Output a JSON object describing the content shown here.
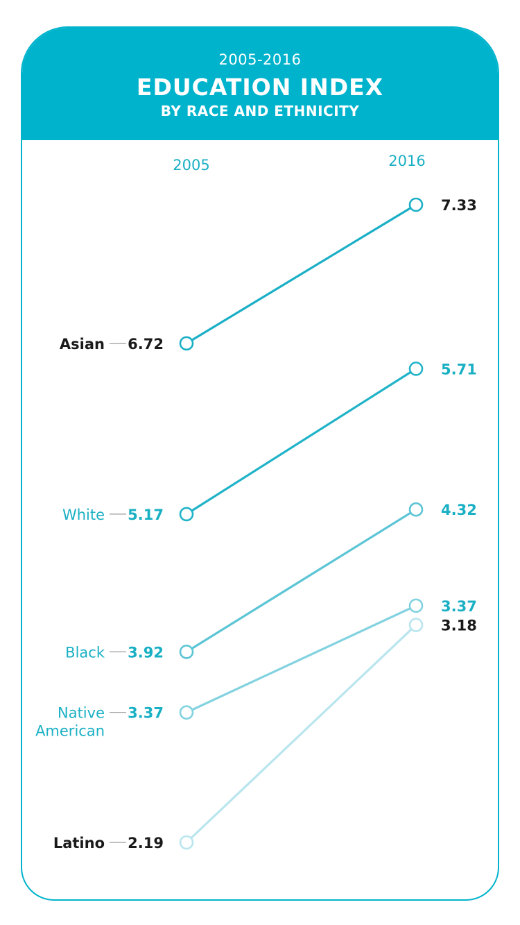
{
  "header": {
    "period": "2005-2016",
    "title": "EDUCATION INDEX",
    "subtitle": "BY RACE AND ETHNICITY"
  },
  "colors": {
    "header_bg": "#00b3cc",
    "dark_text": "#1a1a1a",
    "teal_text": "#1ab0c4"
  },
  "chart_data": {
    "type": "slope",
    "x": [
      "2005",
      "2016"
    ],
    "series": [
      {
        "name": "Asian",
        "label_lines": [
          "Asian"
        ],
        "values": [
          6.72,
          7.33
        ],
        "line_color": "#1aafc6",
        "label_color": "#1a1a1a",
        "label_bold": true,
        "start_value_color": "#1a1a1a",
        "end_value_color": "#1a1a1a"
      },
      {
        "name": "White",
        "label_lines": [
          "White"
        ],
        "values": [
          5.17,
          5.71
        ],
        "line_color": "#20b3c8",
        "label_color": "#1ab0c4",
        "label_bold": false,
        "start_value_color": "#1ab0c4",
        "end_value_color": "#1ab0c4"
      },
      {
        "name": "Black",
        "label_lines": [
          "Black"
        ],
        "values": [
          3.92,
          4.32
        ],
        "line_color": "#5cc5d5",
        "label_color": "#1ab0c4",
        "label_bold": false,
        "start_value_color": "#1ab0c4",
        "end_value_color": "#1ab0c4"
      },
      {
        "name": "Native American",
        "label_lines": [
          "Native",
          "American"
        ],
        "values": [
          3.37,
          3.37
        ],
        "line_color": "#82d2df",
        "label_color": "#1ab0c4",
        "label_bold": false,
        "start_value_color": "#1ab0c4",
        "end_value_color": "#1ab0c4"
      },
      {
        "name": "Latino",
        "label_lines": [
          "Latino"
        ],
        "values": [
          2.19,
          3.18
        ],
        "line_color": "#b9e5ee",
        "label_color": "#1a1a1a",
        "label_bold": true,
        "start_value_color": "#1a1a1a",
        "end_value_color": "#1a1a1a"
      }
    ]
  }
}
